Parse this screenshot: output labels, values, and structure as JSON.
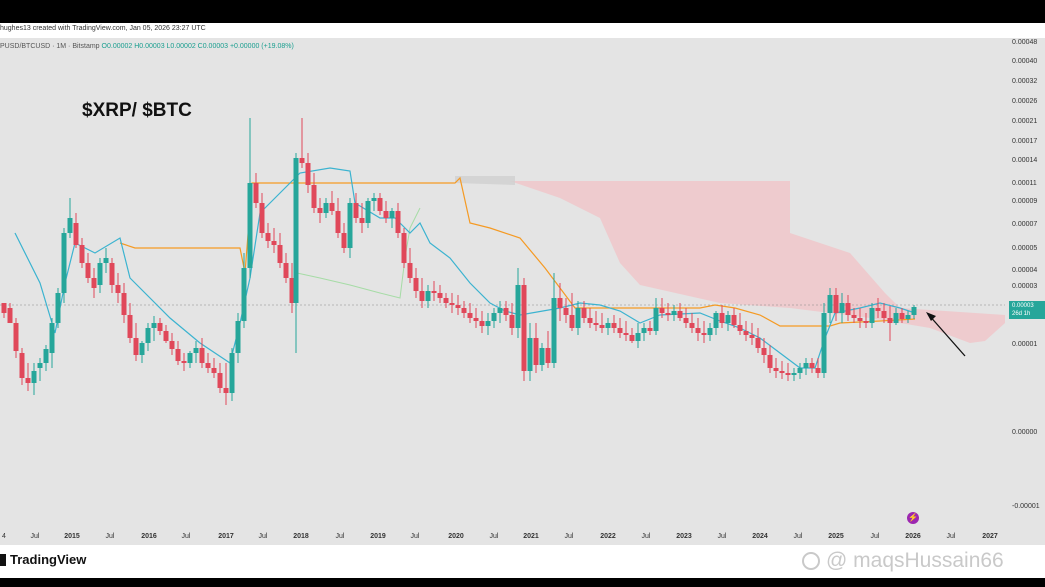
{
  "header": {
    "credit": "hughes13 created with TradingView.com, Jan 05, 2026 23:27 UTC",
    "symbol": "PUSD/BTCUSD · 1M · Bitstamp",
    "ohlc": "O0.00002 H0.00003 L0.00002 C0.00003 +0.00000 (+19.08%)"
  },
  "title": "$XRP/ $BTC",
  "price_tag": {
    "value": "0.00003",
    "countdown": "26d 1h"
  },
  "footer": {
    "brand": "TradingView",
    "watermark": "@ maqsHussain66"
  },
  "colors": {
    "up": "#26a69a",
    "down": "#e0485a",
    "conversion_line": "#3bb3d0",
    "base_line": "#f59a23",
    "cloud": "#f2c0c4",
    "lagging_span": "#a6dca6",
    "arrow": "#111111"
  },
  "chart_data": {
    "type": "candlestick",
    "title": "$XRP/ $BTC",
    "interval": "1M",
    "y_scale": "log",
    "y_ticks": [
      "0.00048",
      "0.00040",
      "0.00032",
      "0.00026",
      "0.00021",
      "0.00017",
      "0.00014",
      "0.00011",
      "0.00009",
      "0.00007",
      "0.00005",
      "0.00004",
      "0.00003",
      "0.00002",
      "0.00001",
      "0.00000",
      "-0.00001"
    ],
    "x_ticks": [
      "4",
      "Jul",
      "2015",
      "Jul",
      "2016",
      "Jul",
      "2017",
      "Jul",
      "2018",
      "Jul",
      "2019",
      "Jul",
      "2020",
      "Jul",
      "2021",
      "Jul",
      "2022",
      "Jul",
      "2023",
      "Jul",
      "2024",
      "Jul",
      "2025",
      "Jul",
      "2026",
      "Jul",
      "2027"
    ],
    "indicators": [
      "conversion line",
      "base line",
      "cloud",
      "lagging span"
    ],
    "last_close": 3e-05,
    "annotation": "arrow pointing to latest candle"
  }
}
